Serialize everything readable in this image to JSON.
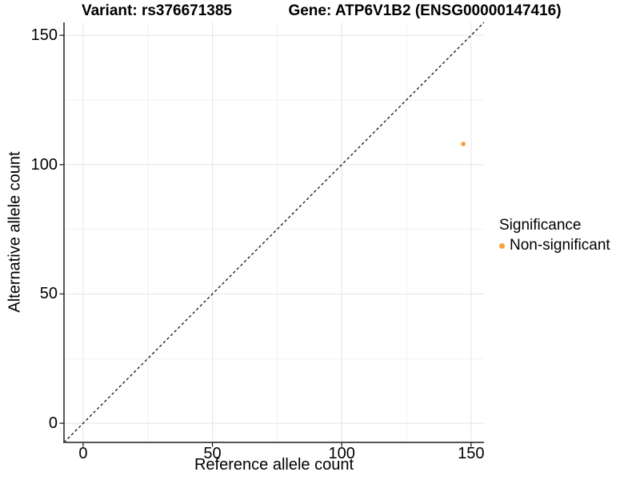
{
  "titles": {
    "left": "Variant: rs376671385",
    "right": "Gene: ATP6V1B2 (ENSG00000147416)"
  },
  "axes": {
    "x": {
      "label": "Reference allele count"
    },
    "y": {
      "label": "Alternative allele count"
    }
  },
  "legend": {
    "title": "Significance",
    "items": [
      {
        "label": "Non-significant",
        "color": "#F9A03C"
      }
    ]
  },
  "chart_data": {
    "type": "scatter",
    "title": "Variant: rs376671385 — Gene: ATP6V1B2 (ENSG00000147416)",
    "xlabel": "Reference allele count",
    "ylabel": "Alternative allele count",
    "xlim": [
      -7.4,
      155
    ],
    "ylim": [
      -7.4,
      155
    ],
    "x_ticks": [
      0,
      50,
      100,
      150
    ],
    "y_ticks": [
      0,
      50,
      100,
      150
    ],
    "x_minor_ticks": [
      25,
      75,
      125
    ],
    "y_minor_ticks": [
      25,
      75,
      125
    ],
    "grid": true,
    "legend_position": "right",
    "legend_title": "Significance",
    "reference_line": {
      "type": "identity",
      "slope": 1,
      "intercept": 0,
      "style": "dashed",
      "color": "#000000"
    },
    "series": [
      {
        "name": "Non-significant",
        "color": "#F9A03C",
        "marker": "circle",
        "points": [
          [
            147,
            108
          ]
        ]
      }
    ]
  }
}
